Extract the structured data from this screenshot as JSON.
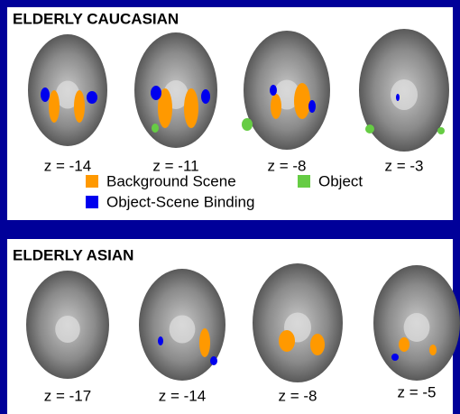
{
  "panels": [
    {
      "title": "ELDERLY CAUCASIAN",
      "slices": [
        "z = -14",
        "z = -11",
        "z = -8",
        "z = -3"
      ],
      "legend": [
        "Background Scene",
        "Object",
        "Object-Scene Binding"
      ]
    },
    {
      "title": "ELDERLY ASIAN",
      "slices": [
        "z = -17",
        "z = -14",
        "z = -8",
        "z = -5"
      ]
    }
  ]
}
